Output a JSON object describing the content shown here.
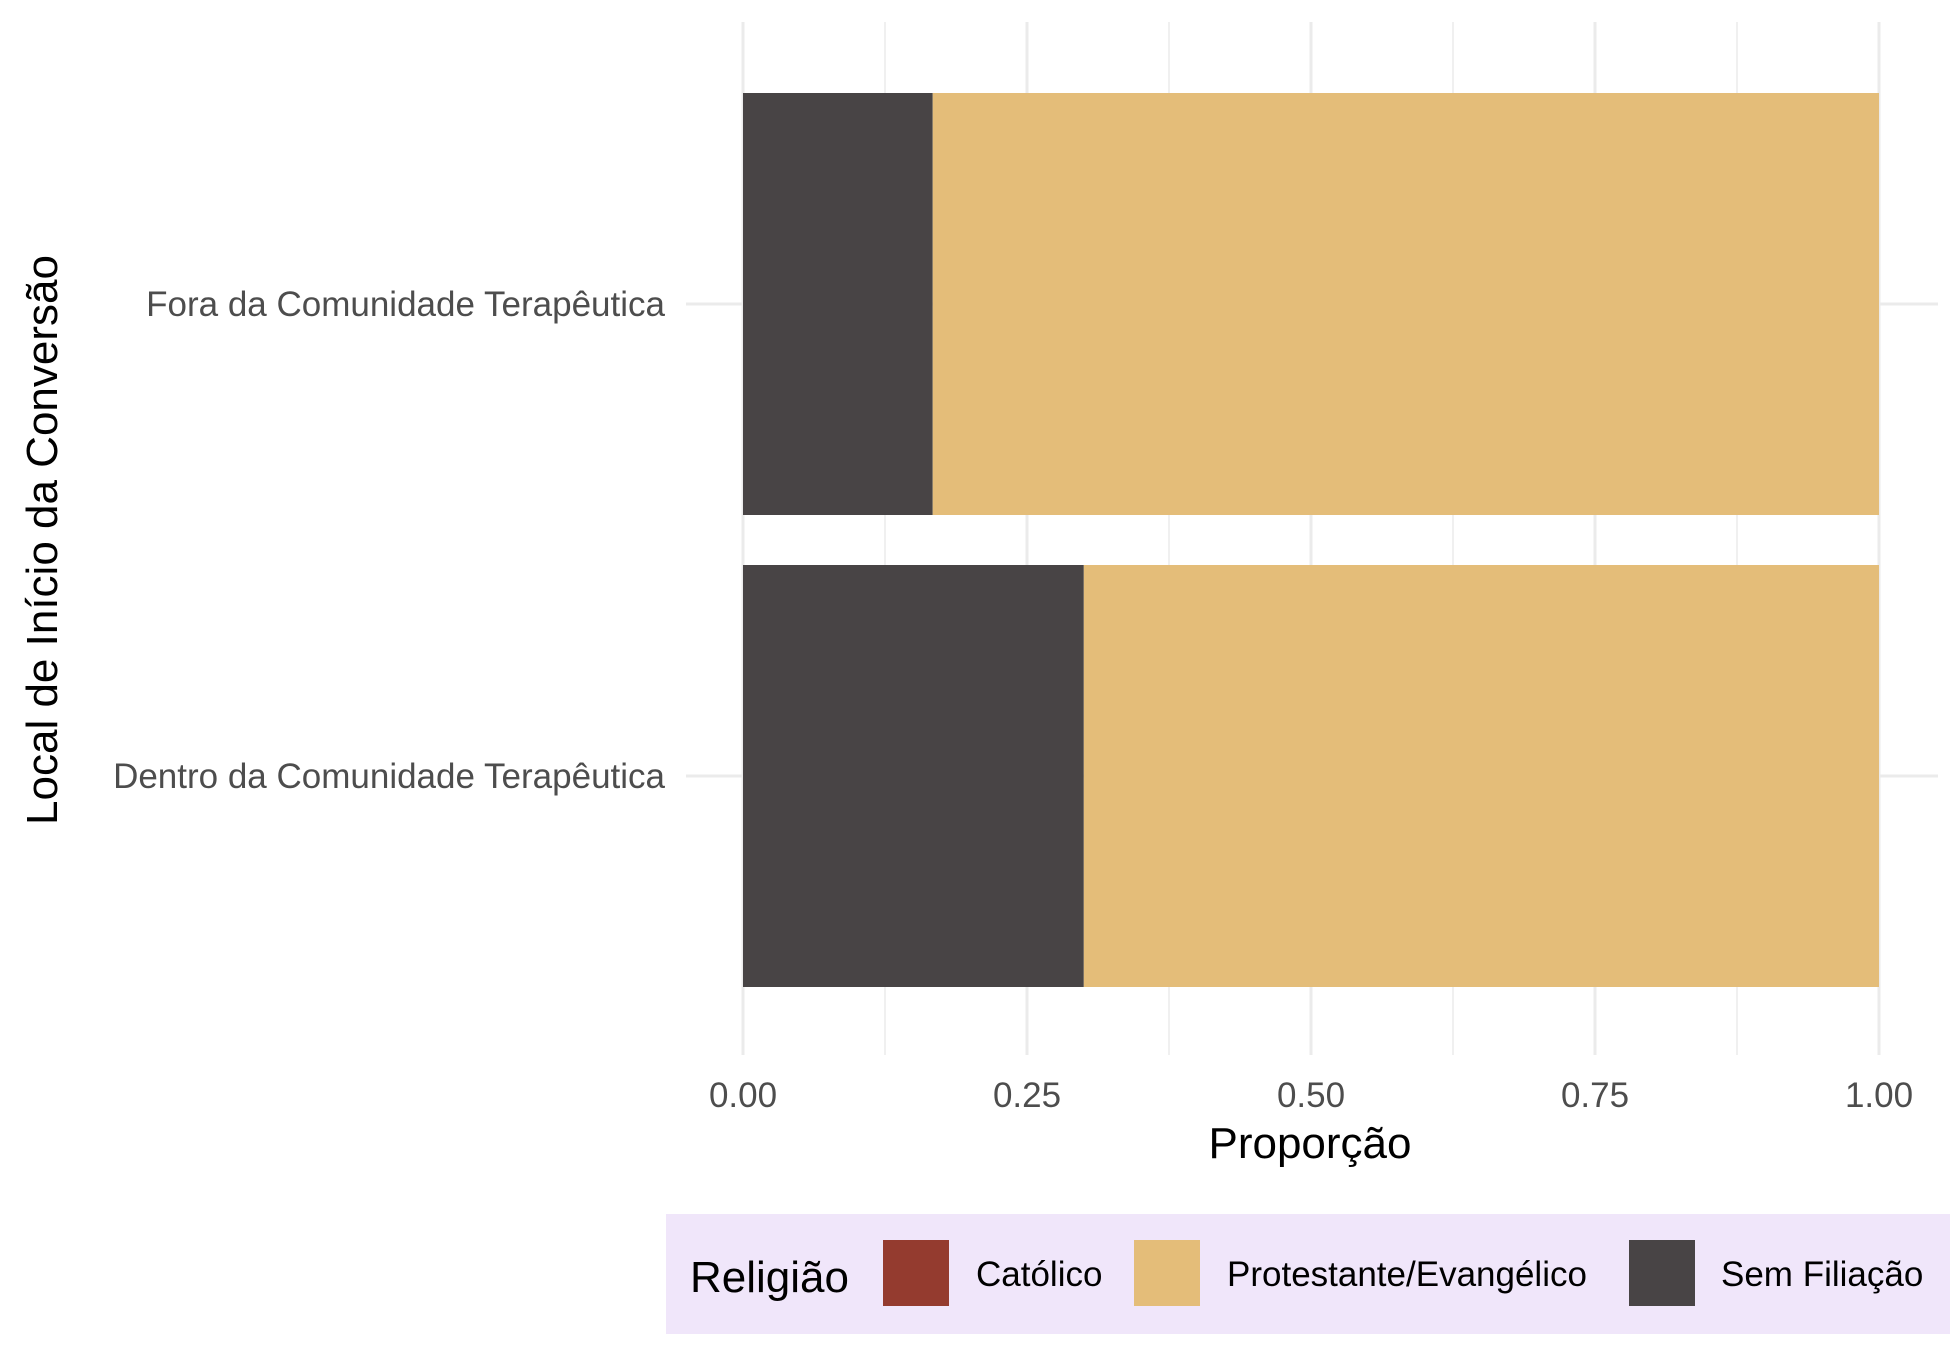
{
  "chart_data": {
    "type": "bar",
    "orientation": "horizontal",
    "stacked": true,
    "xlabel": "Proporção",
    "ylabel": "Local de Início da Conversão",
    "xlim": [
      0,
      1
    ],
    "xticks": [
      "0.00",
      "0.25",
      "0.50",
      "0.75",
      "1.00"
    ],
    "grid": true,
    "categories": [
      "Fora da Comunidade Terapêutica",
      "Dentro da Comunidade Terapêutica"
    ],
    "series": [
      {
        "name": "Católico",
        "color": "#943b2f",
        "values": [
          0,
          0
        ]
      },
      {
        "name": "Protestante/Evangélico",
        "color": "#e4bd79",
        "values": [
          0.833,
          0.7
        ]
      },
      {
        "name": "Sem Filiação",
        "color": "#484445",
        "values": [
          0.167,
          0.3
        ]
      }
    ],
    "stack_order_from_left": [
      "Sem Filiação",
      "Protestante/Evangélico",
      "Católico"
    ],
    "legend": {
      "title": "Religião",
      "position": "bottom",
      "background": "#f0e6fa",
      "items": [
        "Católico",
        "Protestante/Evangélico",
        "Sem Filiação"
      ]
    }
  }
}
